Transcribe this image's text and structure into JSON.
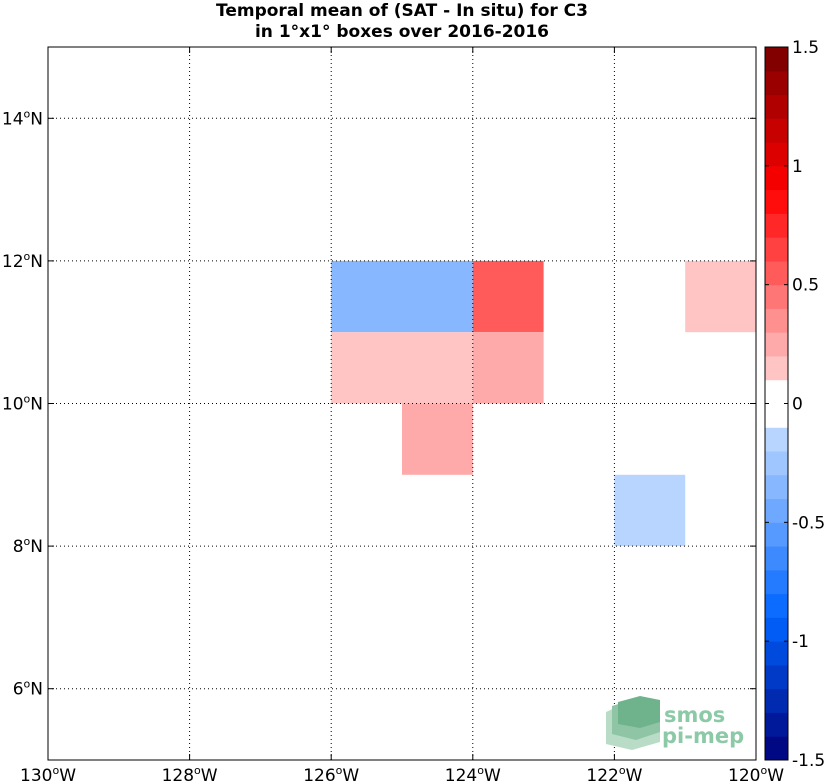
{
  "title_line1": "Temporal mean of (SAT - In situ) for C3",
  "title_line2": "in 1°x1° boxes over 2016-2016",
  "map": {
    "lon_range": [
      -130,
      -120
    ],
    "lat_range": [
      5,
      15
    ],
    "lon_ticks": [
      {
        "value": -130,
        "label": "130",
        "suffix": "W"
      },
      {
        "value": -128,
        "label": "128",
        "suffix": "W"
      },
      {
        "value": -126,
        "label": "126",
        "suffix": "W"
      },
      {
        "value": -124,
        "label": "124",
        "suffix": "W"
      },
      {
        "value": -122,
        "label": "122",
        "suffix": "W"
      },
      {
        "value": -120,
        "label": "120",
        "suffix": "W"
      }
    ],
    "lat_ticks": [
      {
        "value": 6,
        "label": "6",
        "suffix": "N"
      },
      {
        "value": 8,
        "label": "8",
        "suffix": "N"
      },
      {
        "value": 10,
        "label": "10",
        "suffix": "N"
      },
      {
        "value": 12,
        "label": "12",
        "suffix": "N"
      },
      {
        "value": 14,
        "label": "14",
        "suffix": "N"
      }
    ],
    "degree_symbol": "o",
    "grid": true
  },
  "chart_data": {
    "type": "heatmap",
    "cell_size_deg": 1,
    "cells": [
      {
        "lon": -126,
        "lat": 11,
        "value": -0.3
      },
      {
        "lon": -125,
        "lat": 11,
        "value": -0.4
      },
      {
        "lon": -124,
        "lat": 11,
        "value": 0.55
      },
      {
        "lon": -121,
        "lat": 11,
        "value": 0.15
      },
      {
        "lon": -126,
        "lat": 10,
        "value": 0.15
      },
      {
        "lon": -125,
        "lat": 10,
        "value": 0.15
      },
      {
        "lon": -124,
        "lat": 10,
        "value": 0.25
      },
      {
        "lon": -125,
        "lat": 9,
        "value": 0.25
      },
      {
        "lon": -122,
        "lat": 8,
        "value": -0.15
      }
    ],
    "colorbar": {
      "range": [
        -1.5,
        1.5
      ],
      "levels": 30,
      "ticks": [
        {
          "value": 1.5,
          "label": "1.5"
        },
        {
          "value": 1,
          "label": "1"
        },
        {
          "value": 0.5,
          "label": "0.5"
        },
        {
          "value": 0,
          "label": "0"
        },
        {
          "value": -0.5,
          "label": "-0.5"
        },
        {
          "value": -1,
          "label": "-1"
        },
        {
          "value": -1.5,
          "label": "-1.5"
        }
      ]
    }
  },
  "logo": {
    "line1": "smos",
    "line2": "pi-mep"
  }
}
